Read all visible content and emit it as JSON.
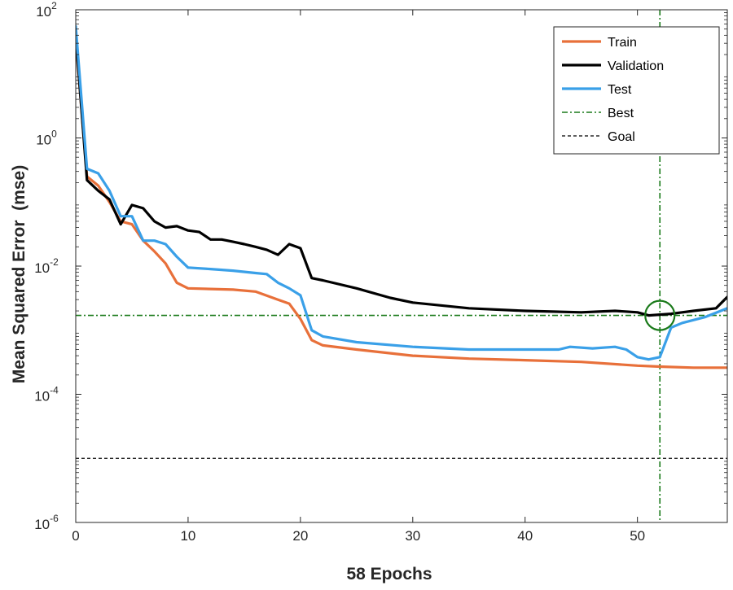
{
  "chart_data": {
    "type": "line",
    "title": "",
    "xlabel": "58 Epochs",
    "ylabel": "Mean Squared Error  (mse)",
    "xlim": [
      0,
      58
    ],
    "ylim": [
      1e-06,
      100
    ],
    "yscale": "log",
    "grid": false,
    "legend_position": "top-right",
    "x_ticks": [
      0,
      10,
      20,
      30,
      40,
      50
    ],
    "y_ticks": [
      {
        "value": 1e-06,
        "base": "10",
        "exp": "-6"
      },
      {
        "value": 0.0001,
        "base": "10",
        "exp": "-4"
      },
      {
        "value": 0.01,
        "base": "10",
        "exp": "-2"
      },
      {
        "value": 1,
        "base": "10",
        "exp": "0"
      },
      {
        "value": 100,
        "base": "10",
        "exp": "2"
      }
    ],
    "series": [
      {
        "name": "Train",
        "color": "#e8703a",
        "style": "solid",
        "points": [
          [
            0,
            35
          ],
          [
            1,
            0.25
          ],
          [
            2,
            0.18
          ],
          [
            3,
            0.1
          ],
          [
            4,
            0.05
          ],
          [
            5,
            0.045
          ],
          [
            6,
            0.025
          ],
          [
            7,
            0.017
          ],
          [
            8,
            0.011
          ],
          [
            9,
            0.0055
          ],
          [
            10,
            0.0045
          ],
          [
            12,
            0.0044
          ],
          [
            14,
            0.0043
          ],
          [
            16,
            0.004
          ],
          [
            18,
            0.003
          ],
          [
            19,
            0.0026
          ],
          [
            20,
            0.0015
          ],
          [
            21,
            0.0007
          ],
          [
            22,
            0.00058
          ],
          [
            25,
            0.0005
          ],
          [
            30,
            0.0004
          ],
          [
            35,
            0.00036
          ],
          [
            40,
            0.00034
          ],
          [
            45,
            0.00032
          ],
          [
            50,
            0.00028
          ],
          [
            52,
            0.00027
          ],
          [
            55,
            0.00026
          ],
          [
            58,
            0.00026
          ]
        ]
      },
      {
        "name": "Validation",
        "color": "#000000",
        "style": "solid",
        "points": [
          [
            0,
            40
          ],
          [
            1,
            0.22
          ],
          [
            2,
            0.15
          ],
          [
            3,
            0.11
          ],
          [
            4,
            0.045
          ],
          [
            5,
            0.09
          ],
          [
            6,
            0.08
          ],
          [
            7,
            0.05
          ],
          [
            8,
            0.04
          ],
          [
            9,
            0.042
          ],
          [
            10,
            0.036
          ],
          [
            11,
            0.034
          ],
          [
            12,
            0.026
          ],
          [
            13,
            0.026
          ],
          [
            14,
            0.024
          ],
          [
            15,
            0.022
          ],
          [
            16,
            0.02
          ],
          [
            17,
            0.018
          ],
          [
            18,
            0.015
          ],
          [
            19,
            0.022
          ],
          [
            20,
            0.019
          ],
          [
            21,
            0.0065
          ],
          [
            22,
            0.006
          ],
          [
            25,
            0.0045
          ],
          [
            28,
            0.0032
          ],
          [
            30,
            0.0027
          ],
          [
            35,
            0.0022
          ],
          [
            40,
            0.002
          ],
          [
            45,
            0.0019
          ],
          [
            48,
            0.002
          ],
          [
            50,
            0.0019
          ],
          [
            51,
            0.0017
          ],
          [
            52,
            0.00175
          ],
          [
            53,
            0.0018
          ],
          [
            55,
            0.002
          ],
          [
            57,
            0.0022
          ],
          [
            58,
            0.0033
          ]
        ]
      },
      {
        "name": "Test",
        "color": "#3aa0e8",
        "style": "solid",
        "points": [
          [
            0,
            55
          ],
          [
            1,
            0.33
          ],
          [
            2,
            0.28
          ],
          [
            3,
            0.15
          ],
          [
            4,
            0.06
          ],
          [
            5,
            0.06
          ],
          [
            6,
            0.025
          ],
          [
            7,
            0.025
          ],
          [
            8,
            0.022
          ],
          [
            9,
            0.014
          ],
          [
            10,
            0.0095
          ],
          [
            12,
            0.009
          ],
          [
            14,
            0.0085
          ],
          [
            16,
            0.0078
          ],
          [
            17,
            0.0075
          ],
          [
            18,
            0.0055
          ],
          [
            19,
            0.0045
          ],
          [
            20,
            0.0035
          ],
          [
            21,
            0.001
          ],
          [
            22,
            0.0008
          ],
          [
            25,
            0.00065
          ],
          [
            30,
            0.00055
          ],
          [
            35,
            0.0005
          ],
          [
            40,
            0.0005
          ],
          [
            43,
            0.0005
          ],
          [
            44,
            0.00055
          ],
          [
            46,
            0.00052
          ],
          [
            48,
            0.00055
          ],
          [
            49,
            0.0005
          ],
          [
            50,
            0.00038
          ],
          [
            51,
            0.00035
          ],
          [
            52,
            0.00038
          ],
          [
            53,
            0.0011
          ],
          [
            54,
            0.0013
          ],
          [
            56,
            0.0016
          ],
          [
            58,
            0.0022
          ]
        ]
      }
    ],
    "best": {
      "name": "Best",
      "color": "#1a7a1a",
      "style": "dash-dot",
      "epoch": 52,
      "value": 0.0017
    },
    "goal": {
      "name": "Goal",
      "color": "#000000",
      "style": "dashed",
      "value": 1e-05
    }
  }
}
